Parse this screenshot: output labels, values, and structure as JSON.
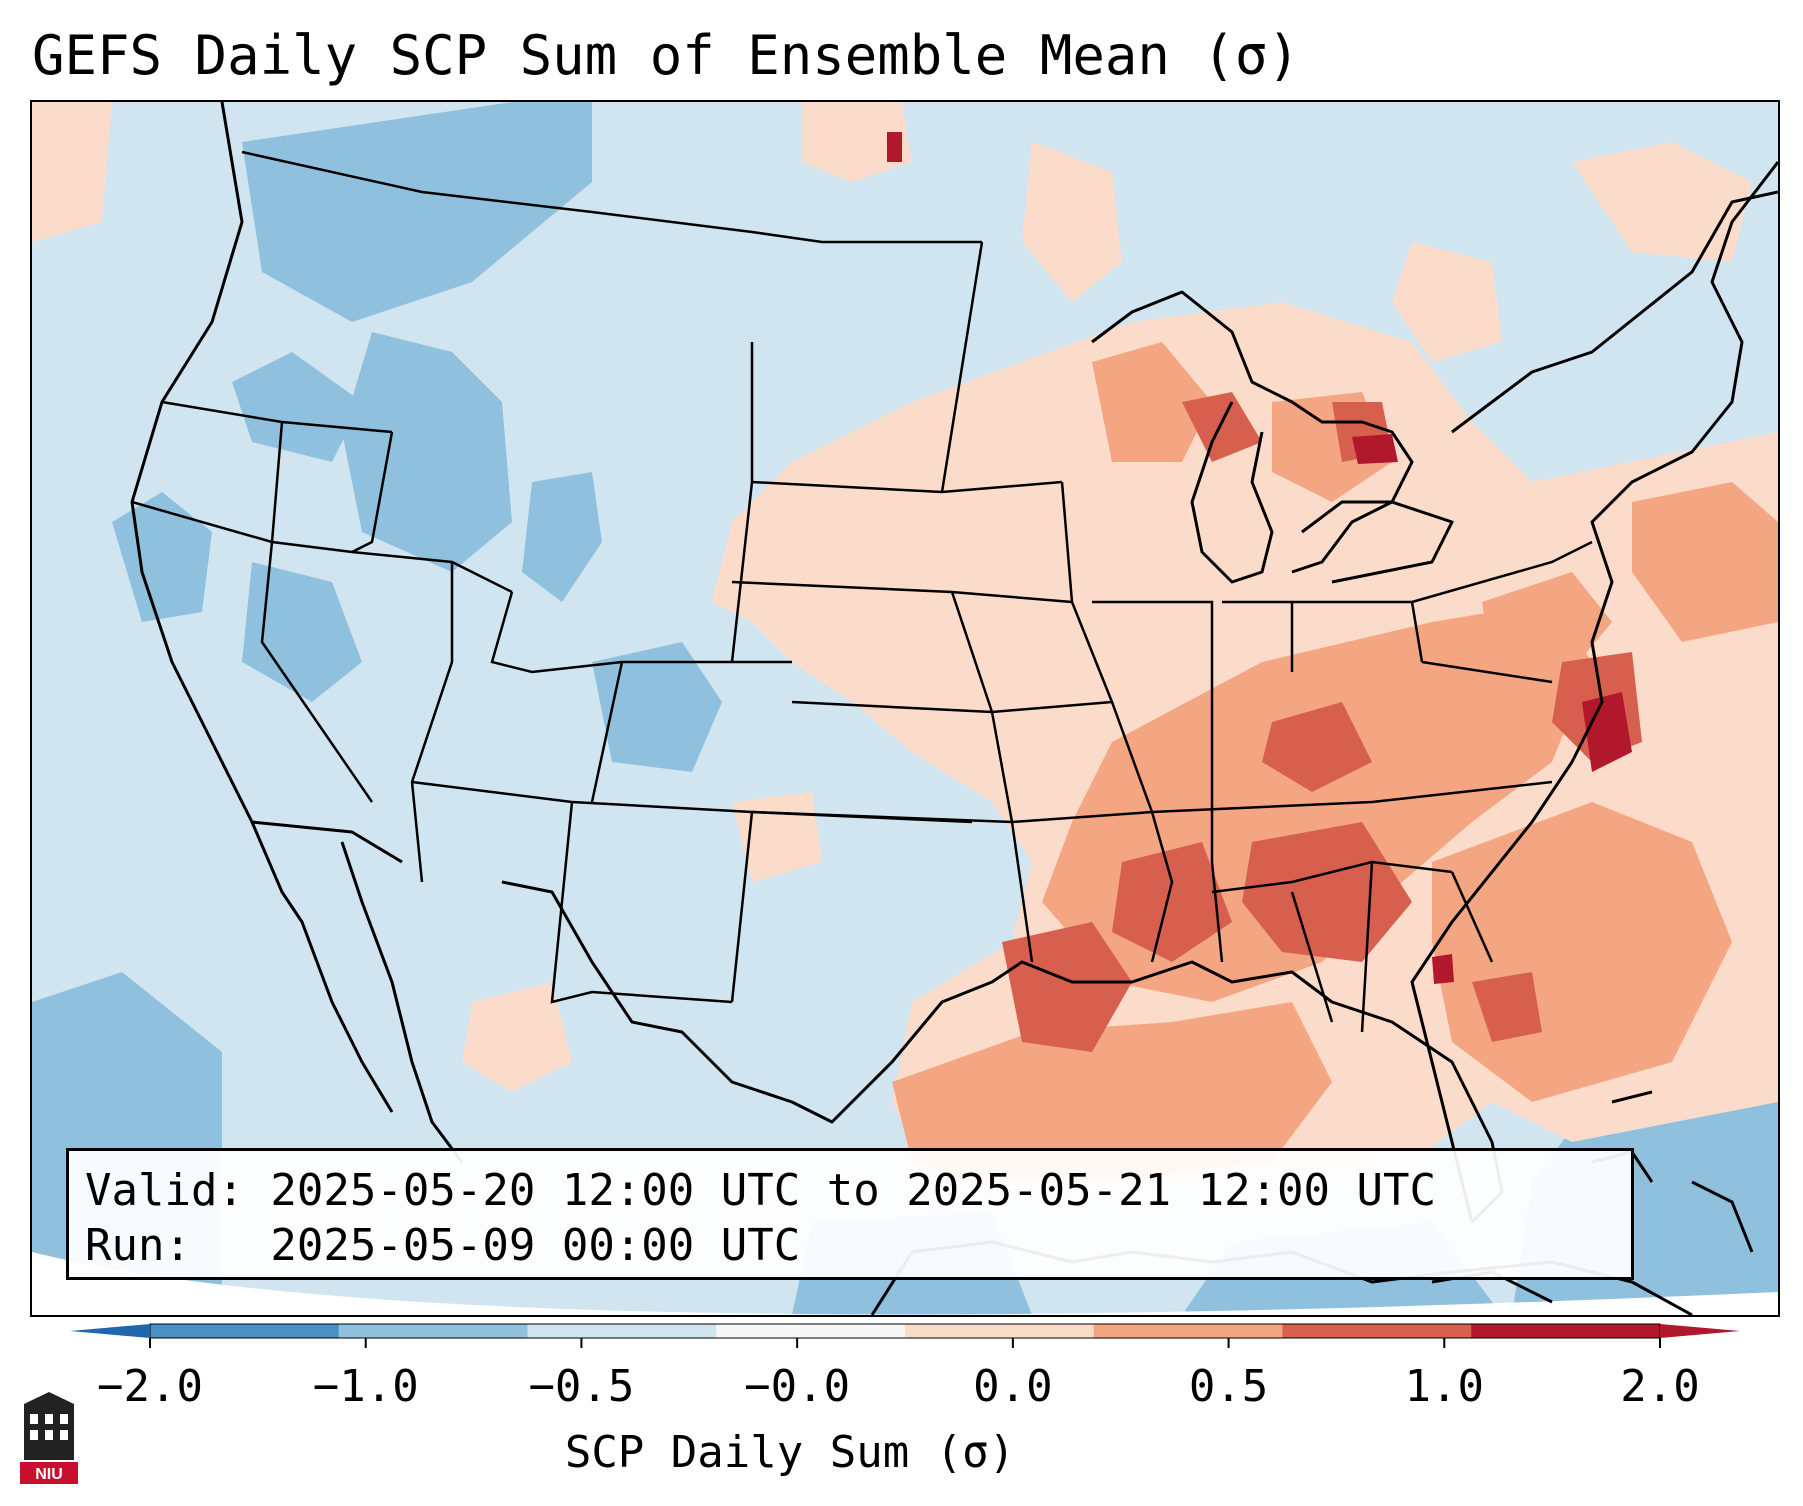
{
  "title": "GEFS Daily SCP Sum of Ensemble Mean (σ)",
  "info": {
    "valid": "Valid: 2025-05-20 12:00 UTC to 2025-05-21 12:00 UTC",
    "run": "Run:   2025-05-09 00:00 UTC"
  },
  "colorbar": {
    "label": "SCP Daily Sum (σ)",
    "ticks": [
      "−2.0",
      "−1.0",
      "−0.5",
      "−0.0",
      "0.0",
      "0.5",
      "1.0",
      "2.0"
    ],
    "colors": [
      "#4a90c4",
      "#8fc1de",
      "#d1e5f0",
      "#f7f7f7",
      "#fbdccb",
      "#f4a582",
      "#d6604d",
      "#b2182b"
    ]
  },
  "logo": {
    "text": "NIU"
  },
  "legend_colors": {
    "ocean_background": "#d1e5f0",
    "land_background": "#d1e5f0",
    "strong_negative": "#8fc1de",
    "weak_positive": "#fbdccb",
    "moderate_positive": "#f4a582",
    "strong_positive": "#d6604d",
    "extreme_positive": "#b2182b"
  }
}
